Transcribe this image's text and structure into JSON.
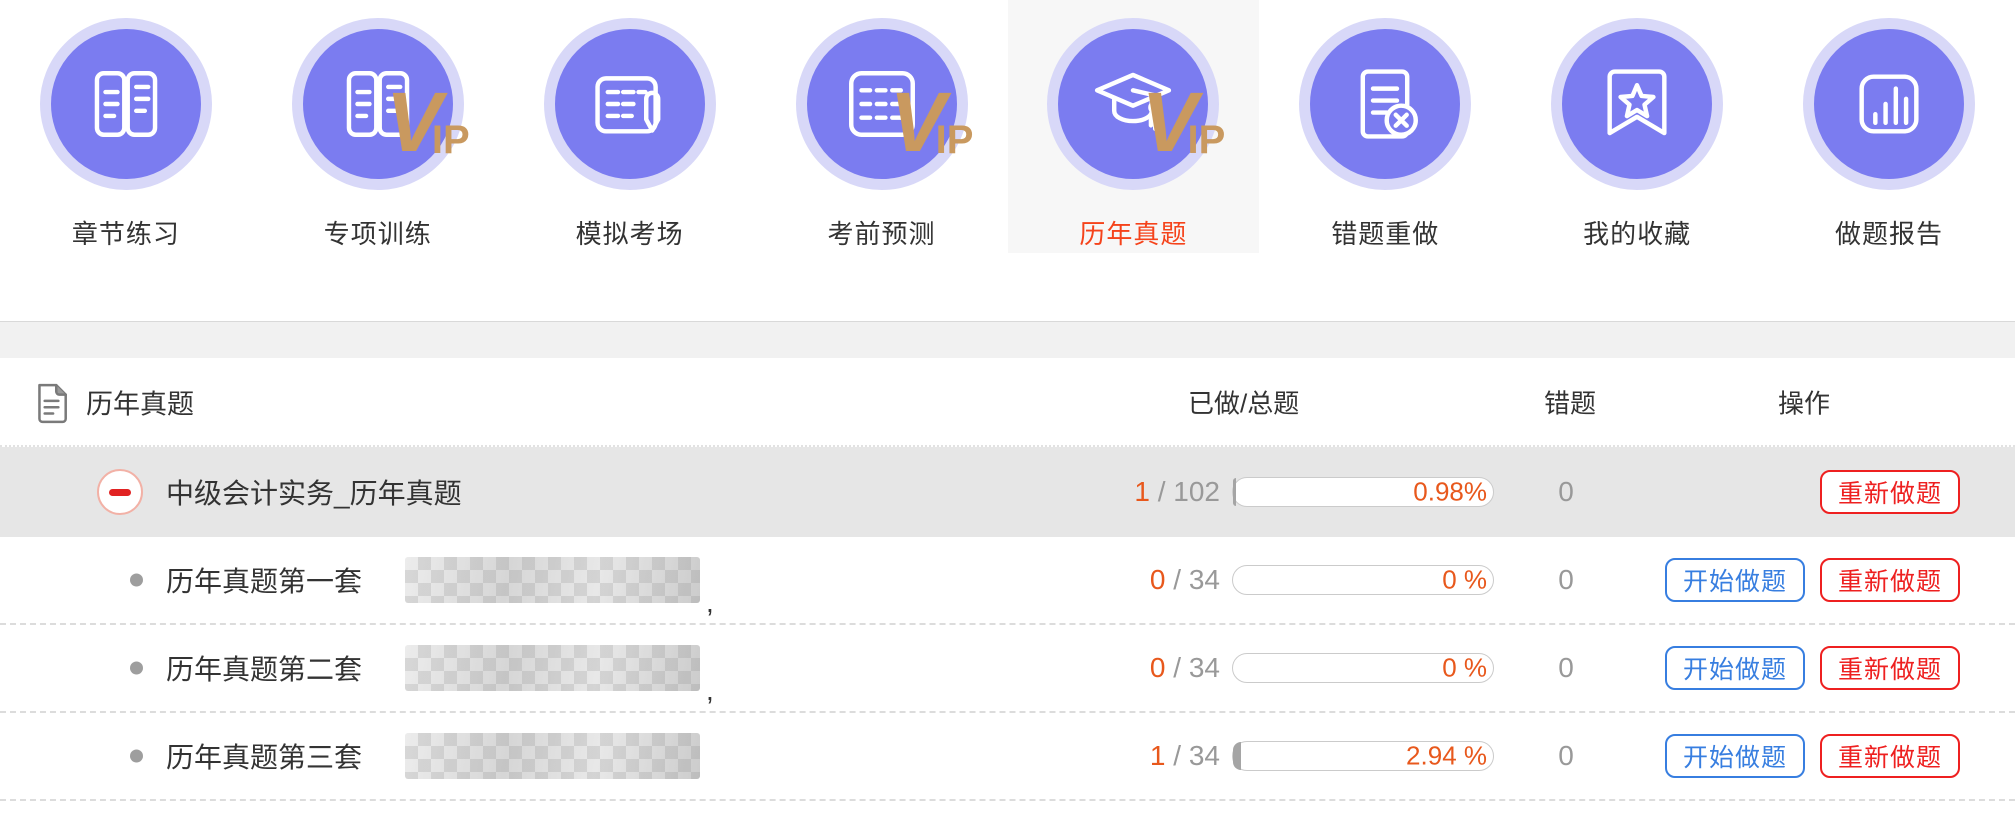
{
  "nav": {
    "vip_v": "V",
    "vip_ip": "IP",
    "items": [
      {
        "label": "章节练习",
        "icon": "open-book-icon",
        "vip": false,
        "selected": false
      },
      {
        "label": "专项训练",
        "icon": "open-book-icon",
        "vip": true,
        "selected": false
      },
      {
        "label": "模拟考场",
        "icon": "exam-sheet-icon",
        "vip": false,
        "selected": false
      },
      {
        "label": "考前预测",
        "icon": "grid-table-icon",
        "vip": true,
        "selected": false
      },
      {
        "label": "历年真题",
        "icon": "graduation-cap-icon",
        "vip": true,
        "selected": true
      },
      {
        "label": "错题重做",
        "icon": "doc-error-icon",
        "vip": false,
        "selected": false
      },
      {
        "label": "我的收藏",
        "icon": "bookmark-star-icon",
        "vip": false,
        "selected": false
      },
      {
        "label": "做题报告",
        "icon": "bar-chart-icon",
        "vip": false,
        "selected": false
      }
    ]
  },
  "table": {
    "title": "历年真题",
    "columns": {
      "progress": "已做/总题",
      "wrong": "错题",
      "actions": "操作"
    },
    "frac_sep": " / ",
    "group": {
      "name": "中级会计实务_历年真题",
      "done": "1",
      "total": "102",
      "percent": "0.98%",
      "wrong": "0",
      "redo_label": "重新做题"
    },
    "rows": [
      {
        "name": "历年真题第一套",
        "suffix": ",",
        "done": "0",
        "total": "34",
        "percent": "0 %",
        "wrong": "0",
        "start_label": "开始做题",
        "redo_label": "重新做题"
      },
      {
        "name": "历年真题第二套",
        "suffix": ",",
        "done": "0",
        "total": "34",
        "percent": "0 %",
        "wrong": "0",
        "start_label": "开始做题",
        "redo_label": "重新做题"
      },
      {
        "name": "历年真题第三套",
        "suffix": "",
        "done": "1",
        "total": "34",
        "percent": "2.94 %",
        "wrong": "0",
        "start_label": "开始做题",
        "redo_label": "重新做题"
      }
    ],
    "progress_fractions": {
      "group": 0.0098,
      "row0": 0,
      "row1": 0,
      "row2": 0.0294
    }
  },
  "colors": {
    "accent_purple": "#7b7cf0",
    "purple_ring": "#d8d8f8",
    "vip_gold": "#c9995f",
    "selected_red": "#f5431b",
    "progress_orange": "#e8581c",
    "button_blue": "#377ee0",
    "button_red": "#ee2020",
    "group_row_bg": "#e6e6e6"
  }
}
